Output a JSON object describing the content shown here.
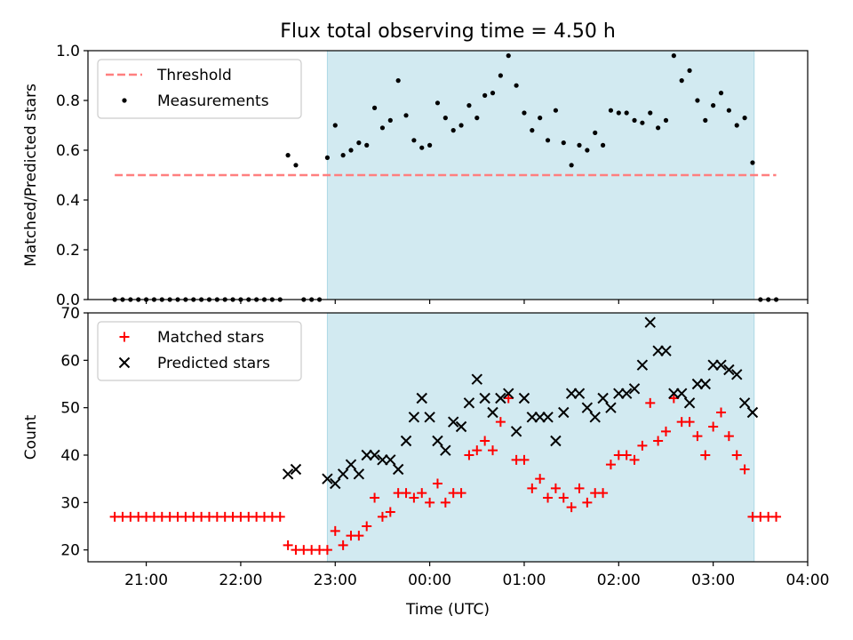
{
  "title": "Flux total observing time = 4.50 h",
  "colors": {
    "band": "#add8e6",
    "threshold": "#ff7f7f",
    "measurement": "#000000",
    "matched": "#ff0000",
    "predicted": "#000000"
  },
  "chart_data": [
    {
      "type": "scatter",
      "panel": "top",
      "title": "Flux total observing time = 4.50 h",
      "xlabel": "",
      "ylabel": "Matched/Predicted stars",
      "xlim": [
        "20:23",
        "04:00"
      ],
      "ylim": [
        0.0,
        1.0
      ],
      "grid": false,
      "legend_position": "upper-left",
      "y_ticks": [
        "0.0",
        "0.2",
        "0.4",
        "0.6",
        "0.8",
        "1.0"
      ],
      "x_ticks": [
        "21:00",
        "22:00",
        "23:00",
        "00:00",
        "01:00",
        "02:00",
        "03:00",
        "04:00"
      ],
      "shaded_interval": [
        "22:55",
        "03:26"
      ],
      "threshold": {
        "label": "Threshold",
        "value": 0.5,
        "x_range": [
          "20:40",
          "03:40"
        ]
      },
      "series": [
        {
          "name": "Measurements",
          "marker": "dot",
          "points": [
            [
              "20:40",
              0
            ],
            [
              "20:45",
              0
            ],
            [
              "20:50",
              0
            ],
            [
              "20:55",
              0
            ],
            [
              "21:00",
              0
            ],
            [
              "21:05",
              0
            ],
            [
              "21:10",
              0
            ],
            [
              "21:15",
              0
            ],
            [
              "21:20",
              0
            ],
            [
              "21:25",
              0
            ],
            [
              "21:30",
              0
            ],
            [
              "21:35",
              0
            ],
            [
              "21:40",
              0
            ],
            [
              "21:45",
              0
            ],
            [
              "21:50",
              0
            ],
            [
              "21:55",
              0
            ],
            [
              "22:00",
              0
            ],
            [
              "22:05",
              0
            ],
            [
              "22:10",
              0
            ],
            [
              "22:15",
              0
            ],
            [
              "22:20",
              0
            ],
            [
              "22:25",
              0
            ],
            [
              "22:30",
              0.58
            ],
            [
              "22:35",
              0.54
            ],
            [
              "22:40",
              0
            ],
            [
              "22:45",
              0
            ],
            [
              "22:50",
              0
            ],
            [
              "22:55",
              0.57
            ],
            [
              "23:00",
              0.7
            ],
            [
              "23:05",
              0.58
            ],
            [
              "23:10",
              0.6
            ],
            [
              "23:15",
              0.63
            ],
            [
              "23:20",
              0.62
            ],
            [
              "23:25",
              0.77
            ],
            [
              "23:30",
              0.69
            ],
            [
              "23:35",
              0.72
            ],
            [
              "23:40",
              0.88
            ],
            [
              "23:45",
              0.74
            ],
            [
              "23:50",
              0.64
            ],
            [
              "23:55",
              0.61
            ],
            [
              "00:00",
              0.62
            ],
            [
              "00:05",
              0.79
            ],
            [
              "00:10",
              0.73
            ],
            [
              "00:15",
              0.68
            ],
            [
              "00:20",
              0.7
            ],
            [
              "00:25",
              0.78
            ],
            [
              "00:30",
              0.73
            ],
            [
              "00:35",
              0.82
            ],
            [
              "00:40",
              0.83
            ],
            [
              "00:45",
              0.9
            ],
            [
              "00:50",
              0.98
            ],
            [
              "00:55",
              0.86
            ],
            [
              "01:00",
              0.75
            ],
            [
              "01:05",
              0.68
            ],
            [
              "01:10",
              0.73
            ],
            [
              "01:15",
              0.64
            ],
            [
              "01:20",
              0.76
            ],
            [
              "01:25",
              0.63
            ],
            [
              "01:30",
              0.54
            ],
            [
              "01:35",
              0.62
            ],
            [
              "01:40",
              0.6
            ],
            [
              "01:45",
              0.67
            ],
            [
              "01:50",
              0.62
            ],
            [
              "01:55",
              0.76
            ],
            [
              "02:00",
              0.75
            ],
            [
              "02:05",
              0.75
            ],
            [
              "02:10",
              0.72
            ],
            [
              "02:15",
              0.71
            ],
            [
              "02:20",
              0.75
            ],
            [
              "02:25",
              0.69
            ],
            [
              "02:30",
              0.72
            ],
            [
              "02:35",
              0.98
            ],
            [
              "02:40",
              0.88
            ],
            [
              "02:45",
              0.92
            ],
            [
              "02:50",
              0.8
            ],
            [
              "02:55",
              0.72
            ],
            [
              "03:00",
              0.78
            ],
            [
              "03:05",
              0.83
            ],
            [
              "03:10",
              0.76
            ],
            [
              "03:15",
              0.7
            ],
            [
              "03:20",
              0.73
            ],
            [
              "03:25",
              0.55
            ],
            [
              "03:30",
              0
            ],
            [
              "03:35",
              0
            ],
            [
              "03:40",
              0
            ]
          ]
        }
      ]
    },
    {
      "type": "scatter",
      "panel": "bottom",
      "title": "",
      "xlabel": "Time (UTC)",
      "ylabel": "Count",
      "xlim": [
        "20:23",
        "04:00"
      ],
      "ylim": [
        17.5,
        70
      ],
      "grid": false,
      "legend_position": "upper-left",
      "y_ticks": [
        "20",
        "30",
        "40",
        "50",
        "60",
        "70"
      ],
      "x_ticks": [
        "21:00",
        "22:00",
        "23:00",
        "00:00",
        "01:00",
        "02:00",
        "03:00",
        "04:00"
      ],
      "shaded_interval": [
        "22:55",
        "03:26"
      ],
      "series": [
        {
          "name": "Matched stars",
          "marker": "plus",
          "points": [
            [
              "20:40",
              27
            ],
            [
              "20:45",
              27
            ],
            [
              "20:50",
              27
            ],
            [
              "20:55",
              27
            ],
            [
              "21:00",
              27
            ],
            [
              "21:05",
              27
            ],
            [
              "21:10",
              27
            ],
            [
              "21:15",
              27
            ],
            [
              "21:20",
              27
            ],
            [
              "21:25",
              27
            ],
            [
              "21:30",
              27
            ],
            [
              "21:35",
              27
            ],
            [
              "21:40",
              27
            ],
            [
              "21:45",
              27
            ],
            [
              "21:50",
              27
            ],
            [
              "21:55",
              27
            ],
            [
              "22:00",
              27
            ],
            [
              "22:05",
              27
            ],
            [
              "22:10",
              27
            ],
            [
              "22:15",
              27
            ],
            [
              "22:20",
              27
            ],
            [
              "22:25",
              27
            ],
            [
              "22:30",
              21
            ],
            [
              "22:35",
              20
            ],
            [
              "22:40",
              20
            ],
            [
              "22:45",
              20
            ],
            [
              "22:50",
              20
            ],
            [
              "22:55",
              20
            ],
            [
              "23:00",
              24
            ],
            [
              "23:05",
              21
            ],
            [
              "23:10",
              23
            ],
            [
              "23:15",
              23
            ],
            [
              "23:20",
              25
            ],
            [
              "23:25",
              31
            ],
            [
              "23:30",
              27
            ],
            [
              "23:35",
              28
            ],
            [
              "23:40",
              32
            ],
            [
              "23:45",
              32
            ],
            [
              "23:50",
              31
            ],
            [
              "23:55",
              32
            ],
            [
              "00:00",
              30
            ],
            [
              "00:05",
              34
            ],
            [
              "00:10",
              30
            ],
            [
              "00:15",
              32
            ],
            [
              "00:20",
              32
            ],
            [
              "00:25",
              40
            ],
            [
              "00:30",
              41
            ],
            [
              "00:35",
              43
            ],
            [
              "00:40",
              41
            ],
            [
              "00:45",
              47
            ],
            [
              "00:50",
              52
            ],
            [
              "00:55",
              39
            ],
            [
              "01:00",
              39
            ],
            [
              "01:05",
              33
            ],
            [
              "01:10",
              35
            ],
            [
              "01:15",
              31
            ],
            [
              "01:20",
              33
            ],
            [
              "01:25",
              31
            ],
            [
              "01:30",
              29
            ],
            [
              "01:35",
              33
            ],
            [
              "01:40",
              30
            ],
            [
              "01:45",
              32
            ],
            [
              "01:50",
              32
            ],
            [
              "01:55",
              38
            ],
            [
              "02:00",
              40
            ],
            [
              "02:05",
              40
            ],
            [
              "02:10",
              39
            ],
            [
              "02:15",
              42
            ],
            [
              "02:20",
              51
            ],
            [
              "02:25",
              43
            ],
            [
              "02:30",
              45
            ],
            [
              "02:35",
              52
            ],
            [
              "02:40",
              47
            ],
            [
              "02:45",
              47
            ],
            [
              "02:50",
              44
            ],
            [
              "02:55",
              40
            ],
            [
              "03:00",
              46
            ],
            [
              "03:05",
              49
            ],
            [
              "03:10",
              44
            ],
            [
              "03:15",
              40
            ],
            [
              "03:20",
              37
            ],
            [
              "03:25",
              27
            ],
            [
              "03:30",
              27
            ],
            [
              "03:35",
              27
            ],
            [
              "03:40",
              27
            ]
          ]
        },
        {
          "name": "Predicted stars",
          "marker": "x",
          "points": [
            [
              "22:30",
              36
            ],
            [
              "22:35",
              37
            ],
            [
              "22:55",
              35
            ],
            [
              "23:00",
              34
            ],
            [
              "23:05",
              36
            ],
            [
              "23:10",
              38
            ],
            [
              "23:15",
              36
            ],
            [
              "23:20",
              40
            ],
            [
              "23:25",
              40
            ],
            [
              "23:30",
              39
            ],
            [
              "23:35",
              39
            ],
            [
              "23:40",
              37
            ],
            [
              "23:45",
              43
            ],
            [
              "23:50",
              48
            ],
            [
              "23:55",
              52
            ],
            [
              "00:00",
              48
            ],
            [
              "00:05",
              43
            ],
            [
              "00:10",
              41
            ],
            [
              "00:15",
              47
            ],
            [
              "00:20",
              46
            ],
            [
              "00:25",
              51
            ],
            [
              "00:30",
              56
            ],
            [
              "00:35",
              52
            ],
            [
              "00:40",
              49
            ],
            [
              "00:45",
              52
            ],
            [
              "00:50",
              53
            ],
            [
              "00:55",
              45
            ],
            [
              "01:00",
              52
            ],
            [
              "01:05",
              48
            ],
            [
              "01:10",
              48
            ],
            [
              "01:15",
              48
            ],
            [
              "01:20",
              43
            ],
            [
              "01:25",
              49
            ],
            [
              "01:30",
              53
            ],
            [
              "01:35",
              53
            ],
            [
              "01:40",
              50
            ],
            [
              "01:45",
              48
            ],
            [
              "01:50",
              52
            ],
            [
              "01:55",
              50
            ],
            [
              "02:00",
              53
            ],
            [
              "02:05",
              53
            ],
            [
              "02:10",
              54
            ],
            [
              "02:15",
              59
            ],
            [
              "02:20",
              68
            ],
            [
              "02:25",
              62
            ],
            [
              "02:30",
              62
            ],
            [
              "02:35",
              53
            ],
            [
              "02:40",
              53
            ],
            [
              "02:45",
              51
            ],
            [
              "02:50",
              55
            ],
            [
              "02:55",
              55
            ],
            [
              "03:00",
              59
            ],
            [
              "03:05",
              59
            ],
            [
              "03:10",
              58
            ],
            [
              "03:15",
              57
            ],
            [
              "03:20",
              51
            ],
            [
              "03:25",
              49
            ]
          ]
        }
      ]
    }
  ]
}
